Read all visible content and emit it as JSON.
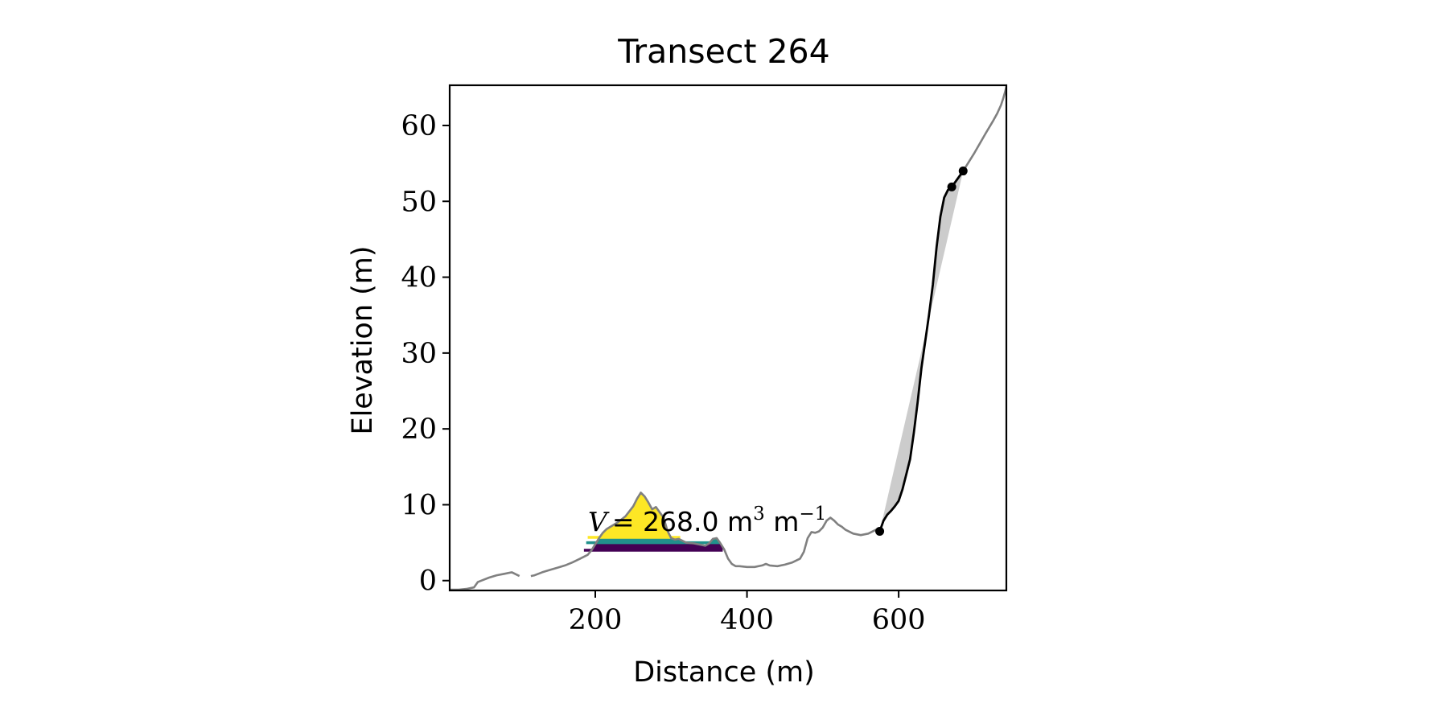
{
  "chart_data": {
    "type": "line",
    "title": "Transect 264",
    "xlabel": "Distance (m)",
    "ylabel": "Elevation (m)",
    "xlim": [
      8,
      742
    ],
    "ylim": [
      -1.3,
      65.3
    ],
    "xticks": [
      200,
      400,
      600
    ],
    "yticks": [
      0,
      10,
      20,
      30,
      40,
      50,
      60
    ],
    "grid": false,
    "legend": "none",
    "annotation": {
      "symbol": "V",
      "text": "= 268.0 m",
      "superscript1": "3",
      "unit2": " m",
      "superscript2": "−1"
    },
    "colors": {
      "profile": "#808080",
      "cliff": "#000000",
      "fill": "#cccccc",
      "yellow": "#fde725",
      "teal": "#21918c",
      "purple": "#440154"
    },
    "series": [
      {
        "role": "profile",
        "x": [
          8,
          20,
          30,
          40,
          45,
          50,
          60,
          70,
          80,
          90,
          100,
          105,
          115,
          120,
          130,
          140,
          150,
          160,
          170,
          180,
          190,
          195,
          200,
          205,
          210,
          215,
          220,
          230,
          240,
          250,
          255,
          260,
          265,
          270,
          275,
          280,
          285,
          290,
          295,
          300,
          305,
          310,
          320,
          330,
          340,
          345,
          350,
          355,
          360,
          365,
          370,
          375,
          380,
          385,
          390,
          400,
          410,
          420,
          425,
          430,
          440,
          450,
          460,
          470,
          475,
          480,
          485,
          490,
          495,
          500,
          505,
          510,
          515,
          520,
          525,
          530,
          540,
          550,
          560,
          570,
          575,
          740
        ],
        "y": [
          -1.2,
          -1.2,
          -1.1,
          -0.9,
          -0.2,
          0.0,
          0.4,
          0.7,
          0.9,
          1.1,
          0.6,
          null,
          0.6,
          0.7,
          1.1,
          1.4,
          1.7,
          2.0,
          2.4,
          2.9,
          3.4,
          4.0,
          4.8,
          5.6,
          6.3,
          6.8,
          7.1,
          7.7,
          8.5,
          9.8,
          10.8,
          11.6,
          11.1,
          10.3,
          9.4,
          9.7,
          9.0,
          8.3,
          6.6,
          5.6,
          5.4,
          5.5,
          5.0,
          4.9,
          4.7,
          4.6,
          4.9,
          5.5,
          5.6,
          4.9,
          4.1,
          2.9,
          2.2,
          1.9,
          1.9,
          1.8,
          1.8,
          2.0,
          2.2,
          2.0,
          1.9,
          2.1,
          2.4,
          2.9,
          3.8,
          5.6,
          6.4,
          6.3,
          6.5,
          7.0,
          7.9,
          8.3,
          7.9,
          7.4,
          7.1,
          6.7,
          6.2,
          6.0,
          6.2,
          6.7,
          6.5,
          null
        ]
      },
      {
        "role": "upper-slope",
        "x": [
          670,
          685,
          700,
          715,
          725,
          730,
          735,
          738,
          740,
          742
        ],
        "y": [
          51.9,
          54.0,
          56.4,
          59.0,
          60.7,
          61.6,
          62.7,
          63.6,
          64.3,
          65.1
        ]
      },
      {
        "role": "cliff",
        "x": [
          575,
          580,
          585,
          590,
          595,
          600,
          605,
          610,
          615,
          620,
          625,
          630,
          635,
          640,
          645,
          650,
          655,
          660,
          665,
          670,
          685
        ],
        "y": [
          6.5,
          7.9,
          8.7,
          9.2,
          9.8,
          10.5,
          12.0,
          14.0,
          16.0,
          19.5,
          23.5,
          28.0,
          31.5,
          35.0,
          39.0,
          44.0,
          48.0,
          50.5,
          51.5,
          51.9,
          54.0
        ]
      }
    ],
    "points": [
      {
        "x": 575,
        "y": 6.5
      },
      {
        "x": 670,
        "y": 51.9
      },
      {
        "x": 685,
        "y": 54.0
      }
    ],
    "fill_polygon": {
      "x": [
        575,
        580,
        585,
        590,
        595,
        600,
        605,
        610,
        615,
        620,
        625,
        630,
        635,
        640,
        645,
        650,
        655,
        660,
        665,
        670,
        685
      ],
      "y": [
        6.5,
        7.9,
        8.7,
        9.2,
        9.8,
        10.5,
        12.0,
        14.0,
        16.0,
        19.5,
        23.5,
        28.0,
        31.5,
        35.0,
        39.0,
        44.0,
        48.0,
        50.5,
        51.5,
        51.9,
        54.0
      ]
    },
    "volume_layers": [
      {
        "color": "yellow",
        "x_start": 190,
        "x_end": 312,
        "base": 5.7
      },
      {
        "color": "teal",
        "x_start": 188,
        "x_end": 365,
        "base": 5.0
      },
      {
        "color": "purple",
        "x_start": 185,
        "x_end": 368,
        "base": 4.0
      }
    ]
  }
}
